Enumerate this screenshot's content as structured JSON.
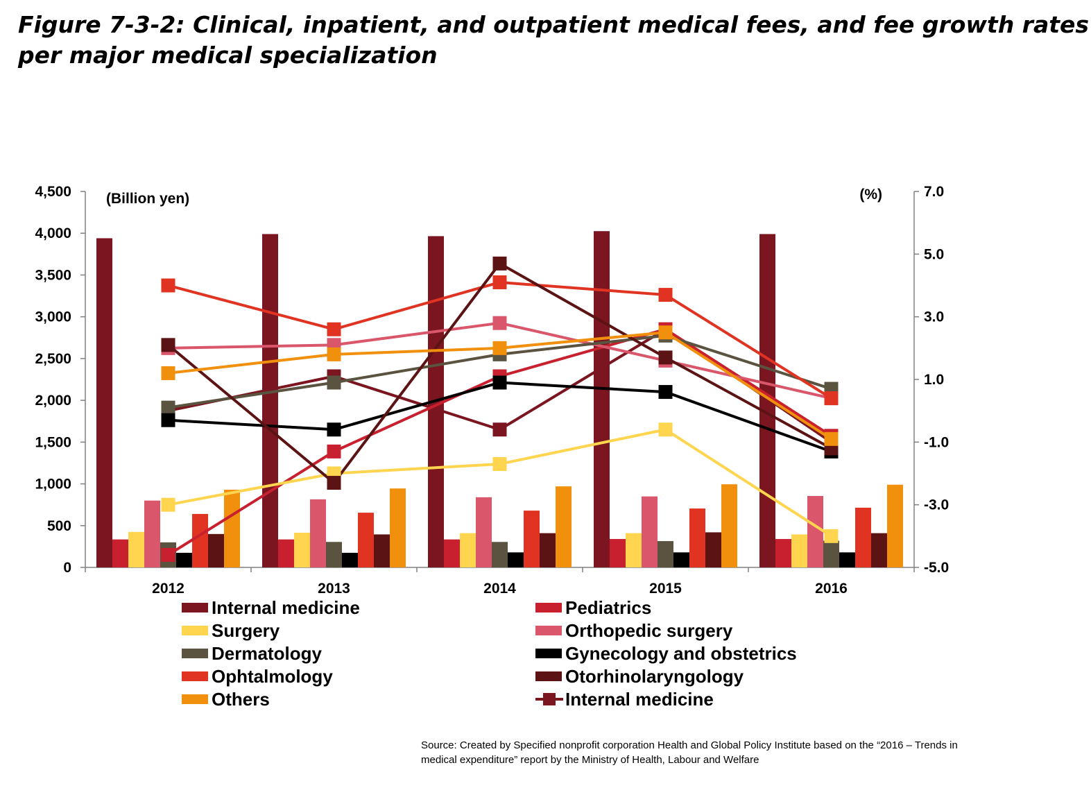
{
  "title": {
    "line1": "Figure 7-3-2: Clinical, inpatient, and outpatient medical fees, and fee growth rates",
    "line2": "per major medical specialization"
  },
  "source": {
    "line1": "Source: Created by Specified nonprofit corporation Health and Global Policy Institute based on the “2016 – Trends in",
    "line2": "medical expenditure” report by the Ministry of Health, Labour and Welfare"
  },
  "chart_data": {
    "type": "bar",
    "categories": [
      "2012",
      "2013",
      "2014",
      "2015",
      "2016"
    ],
    "y_left": {
      "label": "(Billion yen)",
      "range": [
        0,
        4500
      ],
      "ticks": [
        0,
        500,
        1000,
        1500,
        2000,
        2500,
        3000,
        3500,
        4000,
        4500
      ],
      "tick_labels": [
        "0",
        "500",
        "1,000",
        "1,500",
        "2,000",
        "2,500",
        "3,000",
        "3,500",
        "4,000",
        "4,500"
      ]
    },
    "y_right": {
      "label": "(%)",
      "range": [
        -5,
        7
      ],
      "ticks": [
        -5,
        -3,
        -1,
        1,
        3,
        5,
        7
      ],
      "tick_labels": [
        "-5.0",
        "-3.0",
        "-1.0",
        "1.0",
        "3.0",
        "5.0",
        "7.0"
      ]
    },
    "bar_series": [
      {
        "name": "Internal medicine",
        "color": "#7B1520",
        "values": [
          3940,
          3990,
          3965,
          4025,
          3990
        ]
      },
      {
        "name": "Pediatrics",
        "color": "#C8202F",
        "values": [
          335,
          335,
          335,
          340,
          340
        ]
      },
      {
        "name": "Surgery",
        "color": "#FFD54F",
        "values": [
          425,
          415,
          410,
          410,
          395
        ]
      },
      {
        "name": "Orthopedic surgery",
        "color": "#D9566B",
        "values": [
          800,
          815,
          840,
          850,
          855
        ]
      },
      {
        "name": "Dermatology",
        "color": "#595340",
        "values": [
          300,
          305,
          305,
          315,
          320
        ]
      },
      {
        "name": "Gynecology and obstetrics",
        "color": "#000000",
        "values": [
          175,
          175,
          180,
          180,
          180
        ]
      },
      {
        "name": "Ophtalmology",
        "color": "#E03322",
        "values": [
          640,
          655,
          680,
          705,
          715
        ]
      },
      {
        "name": "Otorhinolaryngology",
        "color": "#5C1313",
        "values": [
          400,
          395,
          410,
          420,
          410
        ]
      },
      {
        "name": "Others",
        "color": "#F0900C",
        "values": [
          930,
          945,
          970,
          995,
          990
        ]
      }
    ],
    "line_series": [
      {
        "name": "Internal medicine",
        "color": "#7B1520",
        "values": [
          0.0,
          1.1,
          -0.6,
          2.6,
          -1.0
        ]
      },
      {
        "name": "Pediatrics",
        "color": "#C8202F",
        "values": [
          -4.6,
          -1.3,
          1.1,
          2.6,
          -0.8
        ]
      },
      {
        "name": "Surgery",
        "color": "#FFD54F",
        "values": [
          -3.0,
          -2.0,
          -1.7,
          -0.6,
          -4.0
        ]
      },
      {
        "name": "Orthopedic surgery",
        "color": "#D9566B",
        "values": [
          2.0,
          2.1,
          2.8,
          1.6,
          0.4
        ]
      },
      {
        "name": "Dermatology",
        "color": "#595340",
        "values": [
          0.1,
          0.9,
          1.8,
          2.4,
          0.7
        ]
      },
      {
        "name": "Gynecology and obstetrics",
        "color": "#000000",
        "values": [
          -0.3,
          -0.6,
          0.9,
          0.6,
          -1.3
        ]
      },
      {
        "name": "Ophtalmology",
        "color": "#E03322",
        "values": [
          4.0,
          2.6,
          4.1,
          3.7,
          0.4
        ]
      },
      {
        "name": "Otorhinolaryngology",
        "color": "#5C1313",
        "values": [
          2.1,
          -2.3,
          4.7,
          1.7,
          -1.2
        ]
      },
      {
        "name": "Others",
        "color": "#F0900C",
        "values": [
          1.2,
          1.8,
          2.0,
          2.5,
          -0.9
        ]
      }
    ],
    "legend": {
      "placement": "bottom",
      "entries": [
        {
          "label": "Internal medicine",
          "color": "#7B1520",
          "kind": "bar"
        },
        {
          "label": "Pediatrics",
          "color": "#C8202F",
          "kind": "bar"
        },
        {
          "label": "Surgery",
          "color": "#FFD54F",
          "kind": "bar"
        },
        {
          "label": "Orthopedic surgery",
          "color": "#D9566B",
          "kind": "bar"
        },
        {
          "label": "Dermatology",
          "color": "#595340",
          "kind": "bar"
        },
        {
          "label": "Gynecology and obstetrics",
          "color": "#000000",
          "kind": "bar"
        },
        {
          "label": "Ophtalmology",
          "color": "#E03322",
          "kind": "bar"
        },
        {
          "label": "Otorhinolaryngology",
          "color": "#5C1313",
          "kind": "bar"
        },
        {
          "label": "Others",
          "color": "#F0900C",
          "kind": "bar"
        },
        {
          "label": "Internal medicine",
          "color": "#7B1520",
          "kind": "line"
        }
      ]
    }
  }
}
